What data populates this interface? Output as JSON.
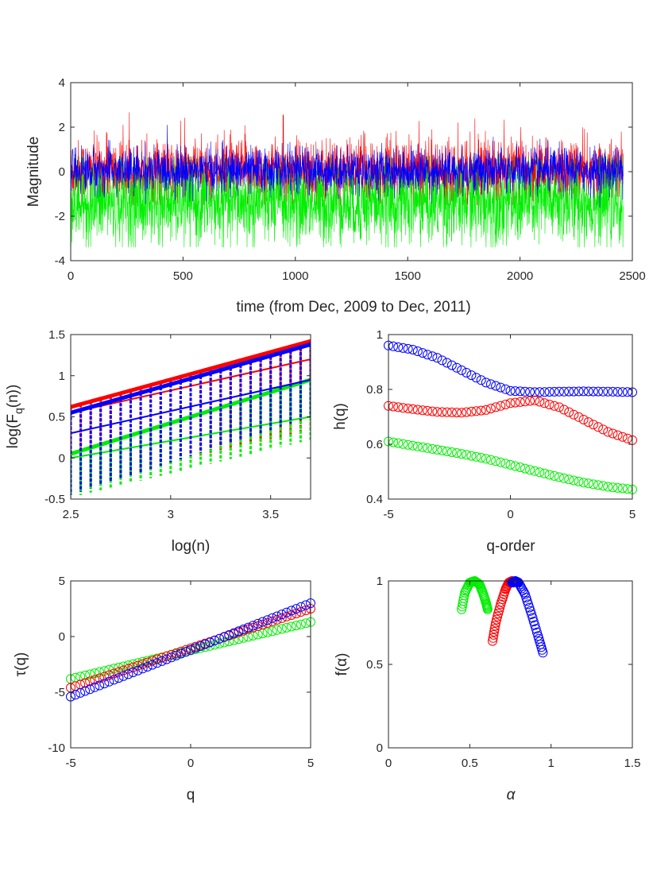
{
  "colors": {
    "red": "#ff0000",
    "blue": "#0000ff",
    "green": "#00ee00",
    "axis": "#262626"
  },
  "chart_data": [
    {
      "id": "ts",
      "type": "line",
      "xlabel": "time (from Dec, 2009 to Dec, 2011)",
      "ylabel": "Magnitude",
      "xlim": [
        0,
        2500
      ],
      "ylim": [
        -4,
        4
      ],
      "xticks": [
        "0",
        "500",
        "1000",
        "1500",
        "2000",
        "2500"
      ],
      "yticks": [
        "-4",
        "-2",
        "0",
        "2",
        "4"
      ],
      "series": [
        {
          "name": "red",
          "color": "#ff0000",
          "n": 2460,
          "mean": 0.0,
          "std": 0.7,
          "clip": [
            -1.5,
            3.4
          ]
        },
        {
          "name": "blue",
          "color": "#0000ff",
          "n": 2460,
          "mean": 0.05,
          "std": 0.5,
          "clip": [
            -1.8,
            2.1
          ]
        },
        {
          "name": "green",
          "color": "#00ee00",
          "n": 2460,
          "mean": -1.4,
          "std": 0.95,
          "clip": [
            -3.4,
            0.7
          ]
        }
      ]
    },
    {
      "id": "fq",
      "type": "line",
      "xlabel": "log(n)",
      "ylabel": "log(F",
      "ylabel_sub": "q",
      "ylabel_suffix": "(n))",
      "xlim": [
        2.5,
        3.7
      ],
      "ylim": [
        -0.5,
        1.5
      ],
      "xticks": [
        "2.5",
        "3",
        "3.5"
      ],
      "yticks": [
        "-0.5",
        "0",
        "0.5",
        "1",
        "1.5"
      ],
      "xtick_values": [
        2.5,
        3,
        3.5
      ],
      "ytick_values": [
        -0.5,
        0,
        0.5,
        1,
        1.5
      ],
      "series": [
        {
          "name": "red",
          "color": "#ff0000",
          "top": [
            0.62,
            1.42
          ],
          "bottom": [
            -0.38,
            0.35
          ],
          "curve": [
            0.55,
            1.2
          ]
        },
        {
          "name": "green",
          "color": "#00ee00",
          "top": [
            0.05,
            0.95
          ],
          "bottom": [
            -0.48,
            0.22
          ],
          "curve": [
            0.0,
            0.5
          ]
        },
        {
          "name": "blue",
          "color": "#0000ff",
          "top": [
            0.55,
            1.38
          ],
          "bottom": [
            -0.45,
            0.5
          ],
          "curve": [
            0.3,
            0.95
          ]
        }
      ]
    },
    {
      "id": "hq",
      "type": "scatter",
      "xlabel": "q-order",
      "ylabel": "h(q)",
      "xlim": [
        -5,
        5
      ],
      "ylim": [
        0.4,
        1
      ],
      "xticks": [
        "-5",
        "0",
        "5"
      ],
      "yticks": [
        "0.4",
        "0.6",
        "0.8",
        "1"
      ],
      "xtick_values": [
        -5,
        0,
        5
      ],
      "ytick_values": [
        0.4,
        0.6,
        0.8,
        1
      ],
      "series": [
        {
          "name": "blue",
          "color": "#0000ff",
          "q": [
            -5,
            -4,
            -3,
            -2,
            -1,
            0,
            1,
            2,
            3,
            4,
            5
          ],
          "h": [
            0.96,
            0.945,
            0.915,
            0.87,
            0.825,
            0.795,
            0.79,
            0.792,
            0.793,
            0.792,
            0.79
          ]
        },
        {
          "name": "red",
          "color": "#ff0000",
          "q": [
            -5,
            -4,
            -3,
            -2,
            -1,
            0,
            1,
            2,
            3,
            4,
            5
          ],
          "h": [
            0.74,
            0.728,
            0.718,
            0.715,
            0.725,
            0.75,
            0.76,
            0.735,
            0.69,
            0.645,
            0.615
          ]
        },
        {
          "name": "green",
          "color": "#00ee00",
          "q": [
            -5,
            -4,
            -3,
            -2,
            -1,
            0,
            1,
            2,
            3,
            4,
            5
          ],
          "h": [
            0.61,
            0.595,
            0.58,
            0.565,
            0.547,
            0.525,
            0.502,
            0.48,
            0.46,
            0.445,
            0.435
          ]
        }
      ]
    },
    {
      "id": "tau",
      "type": "scatter",
      "xlabel": "q",
      "ylabel": "τ(q)",
      "xlim": [
        -5,
        5
      ],
      "ylim": [
        -10,
        5
      ],
      "xticks": [
        "-5",
        "0",
        "5"
      ],
      "yticks": [
        "-10",
        "-5",
        "0",
        "5"
      ],
      "xtick_values": [
        -5,
        0,
        5
      ],
      "ytick_values": [
        -10,
        -5,
        0,
        5
      ],
      "series": [
        {
          "name": "green",
          "color": "#00ee00",
          "endpoints": [
            [
              -5,
              -3.8
            ],
            [
              5,
              1.3
            ]
          ]
        },
        {
          "name": "red",
          "color": "#ff0000",
          "endpoints": [
            [
              -5,
              -4.6
            ],
            [
              5,
              2.5
            ]
          ]
        },
        {
          "name": "blue",
          "color": "#0000ff",
          "endpoints": [
            [
              -5,
              -5.4
            ],
            [
              5,
              3.0
            ]
          ]
        }
      ]
    },
    {
      "id": "falpha",
      "type": "scatter",
      "xlabel": "α",
      "ylabel": "f(α)",
      "xlim": [
        0,
        1.5
      ],
      "ylim": [
        0,
        1
      ],
      "xticks": [
        "0",
        "0.5",
        "1",
        "1.5"
      ],
      "yticks": [
        "0",
        "0.5",
        "1"
      ],
      "xtick_values": [
        0,
        0.5,
        1,
        1.5
      ],
      "ytick_values": [
        0,
        0.5,
        1
      ],
      "series": [
        {
          "name": "green",
          "color": "#00ee00",
          "alpha": [
            0.45,
            0.47,
            0.5,
            0.53,
            0.56,
            0.58,
            0.6,
            0.61
          ],
          "f": [
            0.83,
            0.93,
            0.99,
            1.0,
            0.98,
            0.93,
            0.87,
            0.83
          ]
        },
        {
          "name": "red",
          "color": "#ff0000",
          "alpha": [
            0.64,
            0.66,
            0.69,
            0.72,
            0.74,
            0.76,
            0.77
          ],
          "f": [
            0.64,
            0.75,
            0.86,
            0.95,
            0.99,
            1.0,
            0.99
          ]
        },
        {
          "name": "blue",
          "color": "#0000ff",
          "alpha": [
            0.76,
            0.78,
            0.8,
            0.84,
            0.88,
            0.92,
            0.95
          ],
          "f": [
            0.99,
            1.0,
            0.99,
            0.92,
            0.8,
            0.67,
            0.57
          ]
        }
      ]
    }
  ]
}
